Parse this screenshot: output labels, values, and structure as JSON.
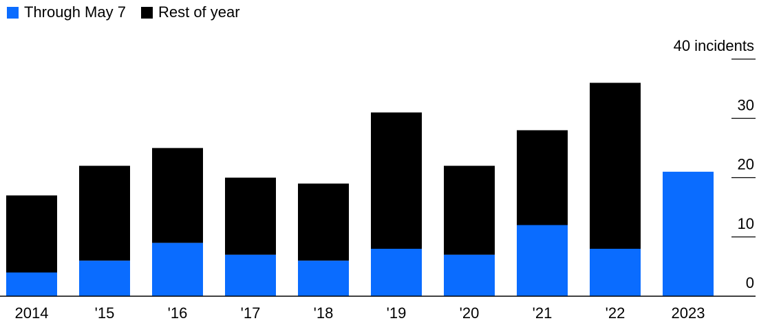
{
  "chart_data": {
    "type": "bar",
    "stacked": true,
    "categories": [
      "2014",
      "'15",
      "'16",
      "'17",
      "'18",
      "'19",
      "'20",
      "'21",
      "'22",
      "2023"
    ],
    "series": [
      {
        "name": "Through May 7",
        "color": "#0a6cff",
        "values": [
          4,
          6,
          9,
          7,
          6,
          8,
          7,
          12,
          8,
          21
        ]
      },
      {
        "name": "Rest of year",
        "color": "#000000",
        "values": [
          13,
          16,
          16,
          13,
          13,
          23,
          15,
          16,
          28,
          0
        ]
      }
    ],
    "y_ticks": [
      "0",
      "10",
      "20",
      "30",
      "40 incidents"
    ],
    "y_tick_values": [
      0,
      10,
      20,
      30,
      40
    ],
    "ylim": [
      0,
      40
    ],
    "y_axis_position": "right",
    "legend_position": "top-left",
    "grid": false
  }
}
